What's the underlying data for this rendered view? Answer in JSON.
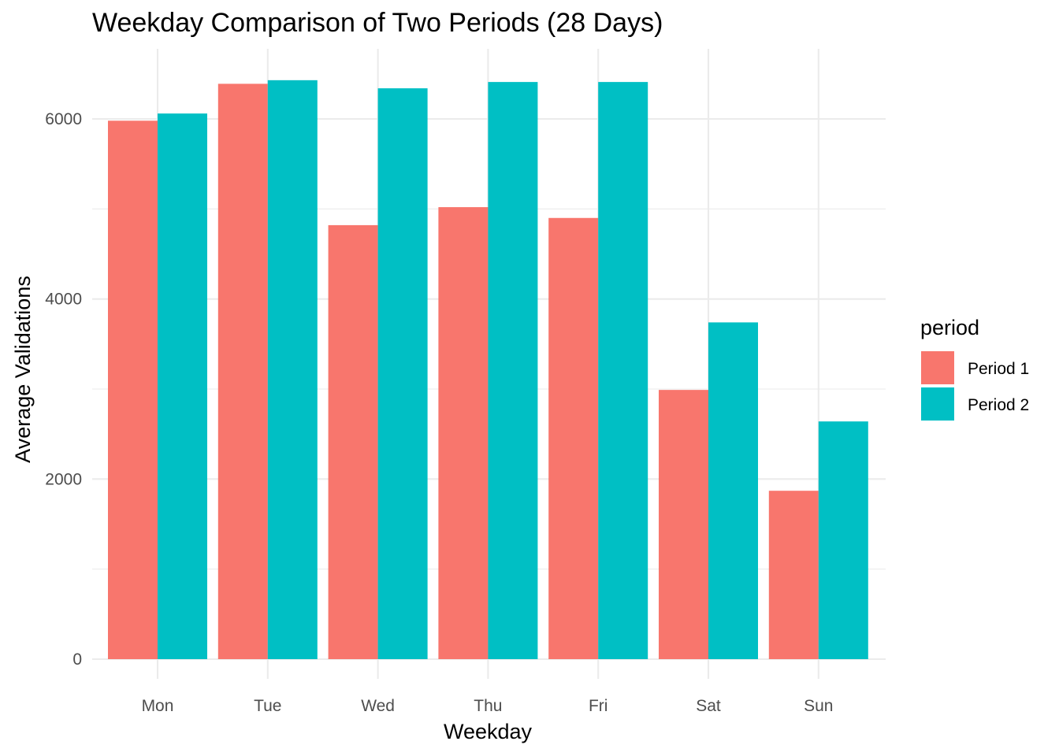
{
  "chart_data": {
    "type": "bar",
    "title": "Weekday Comparison of Two Periods (28 Days)",
    "xlabel": "Weekday",
    "ylabel": "Average Validations",
    "categories": [
      "Mon",
      "Tue",
      "Wed",
      "Thu",
      "Fri",
      "Sat",
      "Sun"
    ],
    "series": [
      {
        "name": "Period 1",
        "color": "#f8766d",
        "values": [
          5980,
          6390,
          4820,
          5020,
          4900,
          2990,
          1870
        ]
      },
      {
        "name": "Period 2",
        "color": "#00bfc4",
        "values": [
          6060,
          6430,
          6340,
          6410,
          6410,
          3740,
          2640
        ]
      }
    ],
    "ylim": [
      0,
      6600
    ],
    "yticks": [
      0,
      2000,
      4000,
      6000
    ],
    "ytick_labels": [
      "0",
      "2000",
      "4000",
      "6000"
    ],
    "grid": true,
    "legend": {
      "title": "period",
      "position": "right"
    }
  }
}
